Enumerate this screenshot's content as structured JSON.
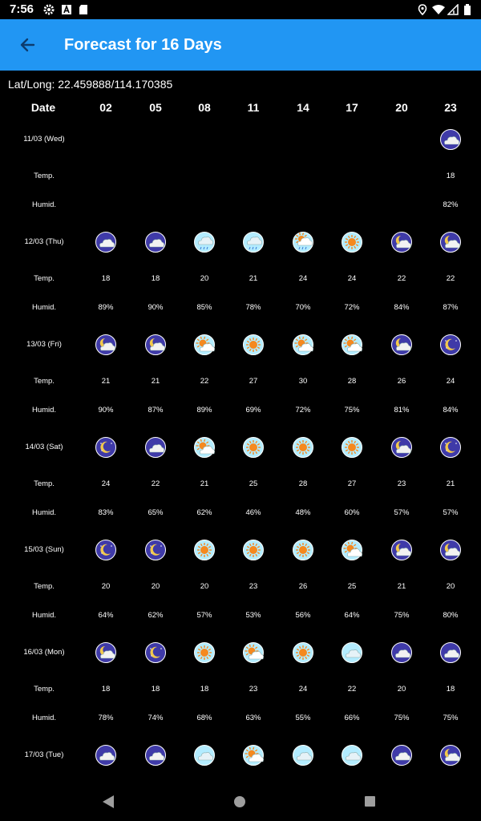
{
  "status_bar": {
    "time": "7:56"
  },
  "app_bar": {
    "title": "Forecast for 16 Days"
  },
  "location": {
    "lat_long": "Lat/Long: 22.459888/114.170385"
  },
  "table": {
    "date_header": "Date",
    "hours": [
      "02",
      "05",
      "08",
      "11",
      "14",
      "17",
      "20",
      "23"
    ],
    "temp_label": "Temp.",
    "humid_label": "Humid.",
    "days": [
      {
        "date": "11/03 (Wed)",
        "icons": [
          null,
          null,
          null,
          null,
          null,
          null,
          null,
          "night-cloudy"
        ],
        "temps": [
          "",
          "",
          "",
          "",
          "",
          "",
          "",
          "18"
        ],
        "humids": [
          "",
          "",
          "",
          "",
          "",
          "",
          "",
          "82%"
        ]
      },
      {
        "date": "12/03 (Thu)",
        "icons": [
          "night-cloudy",
          "night-cloudy",
          "day-rain",
          "day-rain",
          "day-sun-rain",
          "day-sun",
          "night-moon-cloud",
          "night-moon-cloud"
        ],
        "temps": [
          "18",
          "18",
          "20",
          "21",
          "24",
          "24",
          "22",
          "22"
        ],
        "humids": [
          "89%",
          "90%",
          "85%",
          "78%",
          "70%",
          "72%",
          "84%",
          "87%"
        ]
      },
      {
        "date": "13/03 (Fri)",
        "icons": [
          "night-moon-cloud",
          "night-moon-cloud",
          "day-sun-cloud",
          "day-sun",
          "day-sun-cloud",
          "day-sun-cloud",
          "night-moon-cloud",
          "night-moon"
        ],
        "temps": [
          "21",
          "21",
          "22",
          "27",
          "30",
          "28",
          "26",
          "24"
        ],
        "humids": [
          "90%",
          "87%",
          "89%",
          "69%",
          "72%",
          "75%",
          "81%",
          "84%"
        ]
      },
      {
        "date": "14/03 (Sat)",
        "icons": [
          "night-moon",
          "night-cloudy",
          "day-sun-cloud",
          "day-sun",
          "day-sun",
          "day-sun",
          "night-moon-cloud",
          "night-moon"
        ],
        "temps": [
          "24",
          "22",
          "21",
          "25",
          "28",
          "27",
          "23",
          "21"
        ],
        "humids": [
          "83%",
          "65%",
          "62%",
          "46%",
          "48%",
          "60%",
          "57%",
          "57%"
        ]
      },
      {
        "date": "15/03 (Sun)",
        "icons": [
          "night-moon",
          "night-moon",
          "day-sun",
          "day-sun",
          "day-sun",
          "day-sun-cloud",
          "night-moon-cloud",
          "night-moon-cloud"
        ],
        "temps": [
          "20",
          "20",
          "20",
          "23",
          "26",
          "25",
          "21",
          "20"
        ],
        "humids": [
          "64%",
          "62%",
          "57%",
          "53%",
          "56%",
          "64%",
          "75%",
          "80%"
        ]
      },
      {
        "date": "16/03 (Mon)",
        "icons": [
          "night-moon-cloud",
          "night-moon",
          "day-sun",
          "day-sun-cloud",
          "day-sun",
          "day-cloudy",
          "night-cloudy",
          "night-cloudy"
        ],
        "temps": [
          "18",
          "18",
          "18",
          "23",
          "24",
          "22",
          "20",
          "18"
        ],
        "humids": [
          "78%",
          "74%",
          "68%",
          "63%",
          "55%",
          "66%",
          "75%",
          "75%"
        ]
      },
      {
        "date": "17/03 (Tue)",
        "icons": [
          "night-cloudy",
          "night-cloudy",
          "day-cloudy",
          "day-sun-cloud",
          "day-cloudy",
          "day-cloudy",
          "night-cloudy",
          "night-moon-cloud"
        ],
        "temps": [],
        "humids": []
      }
    ]
  },
  "colors": {
    "app_bar": "#2196f3",
    "night_icon_bg": "#3f3aa8",
    "day_icon_bg": "#b3ecff",
    "sun": "#f5891f",
    "moon": "#f2c94c"
  }
}
